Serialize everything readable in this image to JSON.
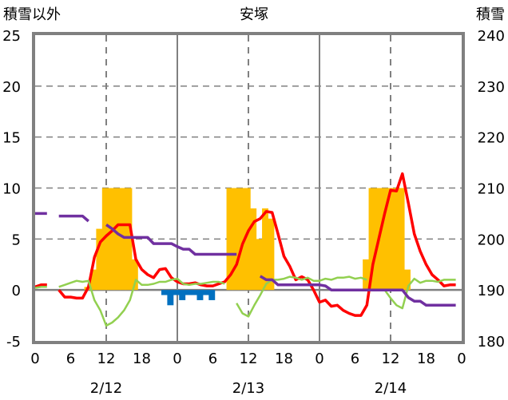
{
  "chart_data": {
    "type": "bar+line",
    "title": "安塚",
    "ylabel_left": "積雪以外",
    "ylabel_right": "積雪",
    "ylim_left": [
      -5,
      25
    ],
    "ylim_right": [
      180,
      240
    ],
    "yticks_left": [
      "25",
      "20",
      "15",
      "10",
      "5",
      "0",
      "-5"
    ],
    "yticks_right": [
      "240",
      "230",
      "220",
      "210",
      "200",
      "190",
      "180"
    ],
    "xticks": [
      "0",
      "6",
      "12",
      "18",
      "0",
      "6",
      "12",
      "18",
      "0",
      "6",
      "12",
      "18",
      "0"
    ],
    "day_labels": [
      "2/12",
      "2/13",
      "2/14"
    ],
    "hours": 72,
    "grid": true,
    "colors": {
      "precip": "#FFC000",
      "negative": "#0070C0",
      "temp": "#FF0000",
      "temp2": "#92D050",
      "snow": "#7030A0",
      "axis": "#808080"
    },
    "precip_bars": {
      "9": 0.3,
      "10": 2,
      "11": 6,
      "12": 10,
      "13": 10,
      "14": 10,
      "15": 10,
      "16": 10,
      "17": 3,
      "33": 10,
      "34": 10,
      "35": 10,
      "36": 10,
      "37": 8,
      "38": 5,
      "39": 8,
      "40": 7,
      "56": 3,
      "57": 10,
      "58": 10,
      "59": 10,
      "60": 10,
      "61": 10,
      "62": 10,
      "63": 2
    },
    "negative_bars": {
      "22": -0.5,
      "23": -1.5,
      "24": -0.5,
      "25": -1,
      "26": -0.5,
      "27": -0.5,
      "28": -1,
      "29": -0.5,
      "30": -1
    },
    "series": [
      {
        "name": "red",
        "axis": "left",
        "values": [
          0.3,
          0.5,
          0.5,
          null,
          0,
          -0.7,
          -0.7,
          -0.8,
          -0.8,
          0.3,
          3.2,
          4.7,
          5.3,
          5.8,
          6.4,
          6.4,
          6.4,
          3,
          2,
          1.5,
          1.2,
          2,
          2.1,
          1.2,
          0.8,
          0.6,
          0.6,
          0.7,
          0.5,
          0.4,
          0.4,
          0.6,
          0.8,
          1.5,
          2.5,
          4.5,
          5.8,
          6.7,
          7,
          7.7,
          7.6,
          5.5,
          3.3,
          2.3,
          1,
          1.3,
          1,
          0,
          -1.2,
          -1,
          -1.6,
          -1.5,
          -2,
          -2.3,
          -2.5,
          -2.5,
          -1.5,
          2.5,
          5,
          7.5,
          9.8,
          9.7,
          11.4,
          8.5,
          5.5,
          3.8,
          2.5,
          1.5,
          1,
          0.4,
          0.5,
          0.5
        ]
      },
      {
        "name": "green",
        "axis": "left",
        "values": [
          0.2,
          0.3,
          0.3,
          null,
          0.3,
          0.5,
          0.7,
          0.9,
          0.8,
          0.9,
          -1,
          -2,
          -3.5,
          -3.2,
          -2.7,
          -2,
          -1,
          1,
          0.5,
          0.5,
          0.6,
          0.8,
          0.8,
          1,
          1.1,
          0.6,
          0.5,
          0.6,
          0.6,
          0.7,
          0.8,
          0.8,
          0.6,
          null,
          -1.3,
          -2.3,
          -2.6,
          -1.5,
          -0.5,
          0.6,
          1,
          1,
          1.1,
          1.3,
          1.2,
          1,
          1.2,
          0.9,
          0.9,
          1.1,
          1,
          1.2,
          1.2,
          1.3,
          1.1,
          1.2,
          1,
          null,
          null,
          0,
          -0.8,
          -1.5,
          -1.8,
          0.4,
          1.1,
          0.7,
          0.9,
          0.9,
          0.8,
          1,
          1,
          1
        ]
      },
      {
        "name": "purple",
        "axis": "right",
        "values": [
          205,
          205,
          205,
          null,
          204.5,
          204.5,
          204.5,
          204.5,
          204.5,
          203.5,
          null,
          null,
          202.8,
          202,
          201,
          200.3,
          200.3,
          200.3,
          200.3,
          200.3,
          199.1,
          199.1,
          199.1,
          199.1,
          198.5,
          198,
          198,
          197,
          197,
          197,
          197,
          197,
          197,
          197,
          197,
          null,
          null,
          null,
          192.7,
          192,
          192,
          191,
          191,
          191,
          191,
          191,
          191,
          191,
          191,
          190.8,
          190,
          190,
          190,
          190,
          190,
          190,
          190,
          190,
          190,
          190,
          190,
          190,
          190,
          188.5,
          187.8,
          187.8,
          187,
          187,
          187,
          187,
          187,
          187
        ]
      }
    ]
  }
}
